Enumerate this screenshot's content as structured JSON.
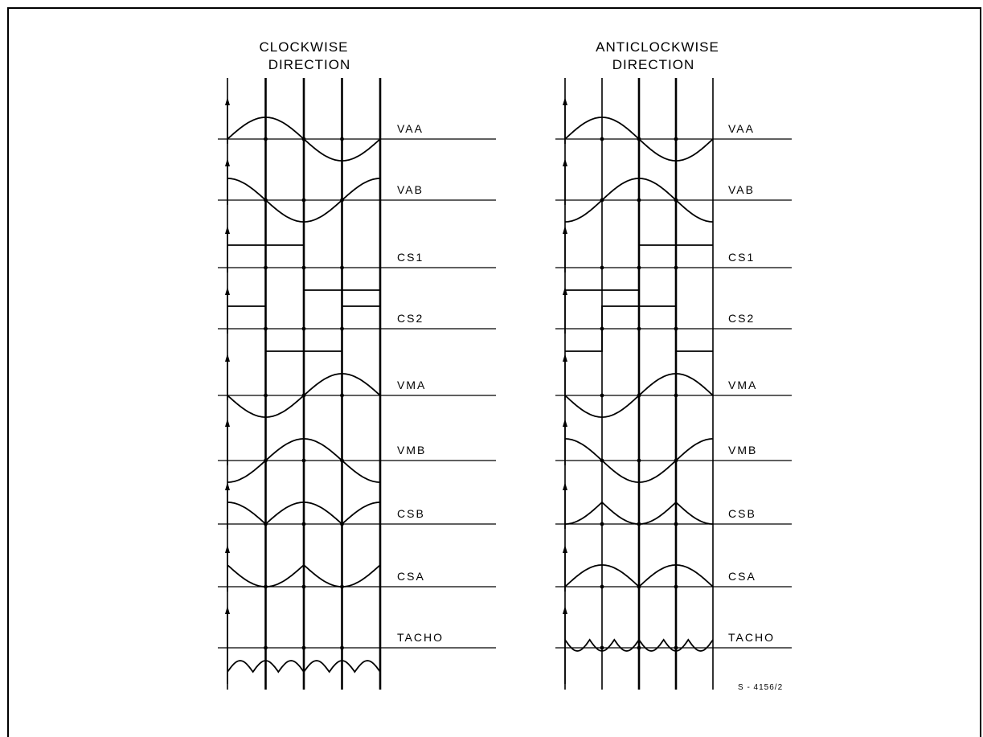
{
  "panels": [
    {
      "id": "cw",
      "title_line1": "CLOCKWISE",
      "title_line2": "DIRECTION",
      "signals": [
        {
          "name": "VAA",
          "kind": "sine",
          "amp": 1,
          "phase": 0
        },
        {
          "name": "VAB",
          "kind": "sine",
          "amp": 1,
          "phase": 90
        },
        {
          "name": "CS1",
          "kind": "square",
          "levels": [
            1,
            1,
            -1,
            -1
          ]
        },
        {
          "name": "CS2",
          "kind": "square",
          "levels": [
            1,
            -1,
            -1,
            1
          ]
        },
        {
          "name": "VMA",
          "kind": "sine",
          "amp": 1,
          "phase": 180
        },
        {
          "name": "VMB",
          "kind": "sine",
          "amp": 1,
          "phase": 270
        },
        {
          "name": "CSB",
          "kind": "abs",
          "sign": 1,
          "phase": 90
        },
        {
          "name": "CSA",
          "kind": "abs",
          "sign": -1,
          "phase": 0
        },
        {
          "name": "TACHO",
          "kind": "scallop",
          "sign": -1
        }
      ]
    },
    {
      "id": "acw",
      "title_line1": "ANTICLOCKWISE",
      "title_line2": "DIRECTION",
      "signals": [
        {
          "name": "VAA",
          "kind": "sine",
          "amp": 1,
          "phase": 0
        },
        {
          "name": "VAB",
          "kind": "sine",
          "amp": 1,
          "phase": 270
        },
        {
          "name": "CS1",
          "kind": "square",
          "levels": [
            -1,
            -1,
            1,
            1
          ]
        },
        {
          "name": "CS2",
          "kind": "square",
          "levels": [
            -1,
            1,
            1,
            -1
          ]
        },
        {
          "name": "VMA",
          "kind": "sine",
          "amp": 1,
          "phase": 180
        },
        {
          "name": "VMB",
          "kind": "sine",
          "amp": 1,
          "phase": 90
        },
        {
          "name": "CSB",
          "kind": "abs",
          "sign": -1,
          "phase": 90
        },
        {
          "name": "CSA",
          "kind": "abs",
          "sign": 1,
          "phase": 0
        },
        {
          "name": "TACHO",
          "kind": "scallop",
          "sign": 1
        }
      ]
    }
  ],
  "figure_ref": "S - 4156/2",
  "colors": {
    "ink": "#000000",
    "paper": "#ffffff"
  }
}
